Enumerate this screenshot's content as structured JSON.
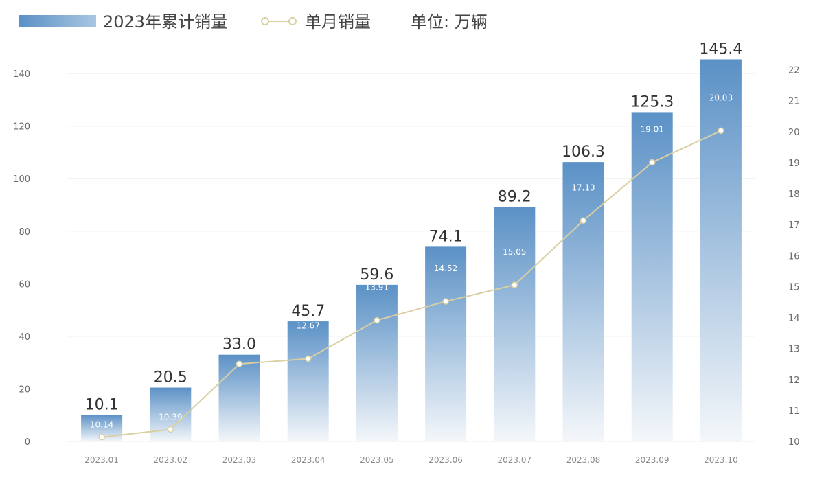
{
  "legend": {
    "bar_label": "2023年累计销量",
    "line_label": "单月销量",
    "unit": "单位: 万辆"
  },
  "colors": {
    "bar_top": "#5b91c6",
    "bar_bottom": "#f4f7fa",
    "line": "#d9cfa2",
    "grid": "#eeeeee"
  },
  "chart_data": {
    "type": "bar",
    "categories": [
      "2023.01",
      "2023.02",
      "2023.03",
      "2023.04",
      "2023.05",
      "2023.06",
      "2023.07",
      "2023.08",
      "2023.09",
      "2023.10"
    ],
    "series": [
      {
        "name": "2023年累计销量",
        "type": "bar",
        "axis": "left",
        "values": [
          10.1,
          20.5,
          33.0,
          45.7,
          59.6,
          74.1,
          89.2,
          106.3,
          125.3,
          145.4
        ],
        "labels": [
          "10.1",
          "20.5",
          "33.0",
          "45.7",
          "59.6",
          "74.1",
          "89.2",
          "106.3",
          "125.3",
          "145.4"
        ]
      },
      {
        "name": "单月销量",
        "type": "line",
        "axis": "right",
        "values": [
          10.14,
          10.39,
          12.5,
          12.67,
          13.91,
          14.52,
          15.05,
          17.13,
          19.01,
          20.03
        ],
        "labels": [
          "10.14",
          "10.39",
          "12.50",
          "12.67",
          "13.91",
          "14.52",
          "15.05",
          "17.13",
          "19.01",
          "20.03"
        ]
      }
    ],
    "y_left": {
      "min": 0,
      "max": 145,
      "ticks": [
        0,
        20,
        40,
        60,
        80,
        100,
        120,
        140
      ]
    },
    "y_right": {
      "min": 10,
      "max": 22.3,
      "ticks": [
        10,
        11,
        12,
        13,
        14,
        15,
        16,
        17,
        18,
        19,
        20,
        21,
        22
      ]
    },
    "grid": true,
    "legend_position": "top-left"
  }
}
